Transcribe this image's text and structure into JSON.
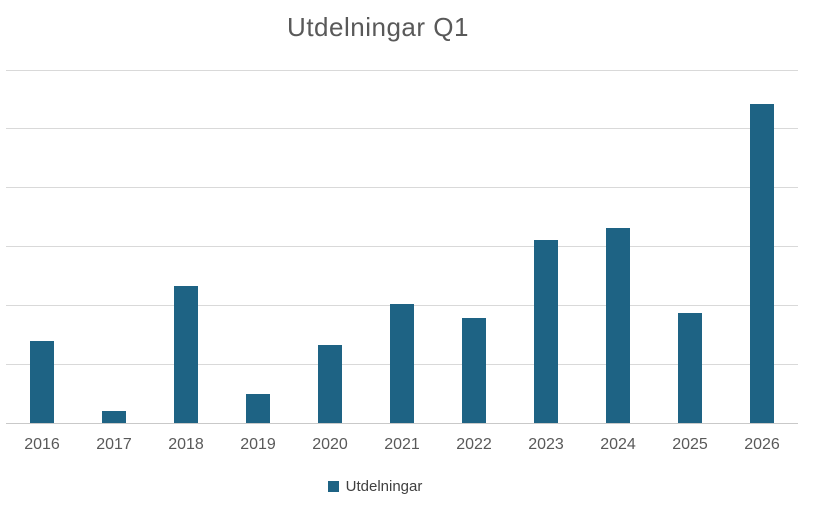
{
  "title": "Utdelningar Q1",
  "legend": {
    "label": "Utdelningar"
  },
  "colors": {
    "bar": "#1e6384",
    "gridline": "#d9d9d9",
    "axis_line": "#c9c9c9",
    "title_text": "#595959",
    "tick_text": "#595959",
    "legend_text": "#404040",
    "background": "#ffffff"
  },
  "chart_data": {
    "type": "bar",
    "title": "Utdelningar Q1",
    "categories": [
      "2016",
      "2017",
      "2018",
      "2019",
      "2020",
      "2021",
      "2022",
      "2023",
      "2024",
      "2025",
      "2026"
    ],
    "series": [
      {
        "name": "Utdelningar",
        "values": [
          1.39,
          0.2,
          2.33,
          0.49,
          1.33,
          2.02,
          1.78,
          3.11,
          3.31,
          1.87,
          5.42
        ]
      }
    ],
    "xlabel": "",
    "ylabel": "",
    "ylim": [
      0,
      6
    ],
    "gridline_count": 7,
    "y_axis_labels_visible": false,
    "grid": "horizontal",
    "legend_position": "bottom"
  }
}
